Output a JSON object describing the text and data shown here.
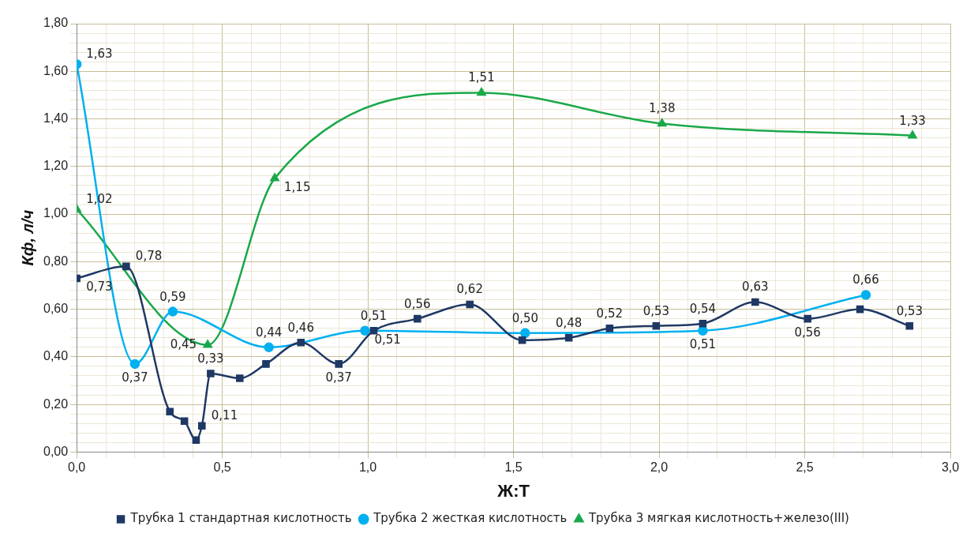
{
  "chart_data": {
    "type": "line",
    "xlabel": "Ж:Т",
    "ylabel": "Кф, л/ч",
    "xlim": [
      0,
      3
    ],
    "ylim": [
      0,
      1.8
    ],
    "xticks": [
      {
        "value": 0,
        "label": "0,0"
      },
      {
        "value": 0.1,
        "label": null
      },
      {
        "value": 0.2,
        "label": null
      },
      {
        "value": 0.3,
        "label": null
      },
      {
        "value": 0.4,
        "label": null
      },
      {
        "value": 0.5,
        "label": "0,5"
      },
      {
        "value": 0.6,
        "label": null
      },
      {
        "value": 0.7,
        "label": null
      },
      {
        "value": 0.8,
        "label": null
      },
      {
        "value": 0.9,
        "label": null
      },
      {
        "value": 1,
        "label": "1,0"
      },
      {
        "value": 1.1,
        "label": null
      },
      {
        "value": 1.2,
        "label": null
      },
      {
        "value": 1.3,
        "label": null
      },
      {
        "value": 1.4,
        "label": null
      },
      {
        "value": 1.5,
        "label": "1,5"
      },
      {
        "value": 1.6,
        "label": null
      },
      {
        "value": 1.7,
        "label": null
      },
      {
        "value": 1.8,
        "label": null
      },
      {
        "value": 1.9,
        "label": null
      },
      {
        "value": 2,
        "label": "2,0"
      },
      {
        "value": 2.1,
        "label": null
      },
      {
        "value": 2.2,
        "label": null
      },
      {
        "value": 2.3,
        "label": null
      },
      {
        "value": 2.4,
        "label": null
      },
      {
        "value": 2.5,
        "label": "2,5"
      },
      {
        "value": 2.6,
        "label": null
      },
      {
        "value": 2.7,
        "label": null
      },
      {
        "value": 2.8,
        "label": null
      },
      {
        "value": 2.9,
        "label": null
      },
      {
        "value": 3,
        "label": "3,0"
      }
    ],
    "yticks": [
      {
        "value": 0,
        "label": "0,00"
      },
      {
        "value": 0.04,
        "label": null
      },
      {
        "value": 0.08,
        "label": null
      },
      {
        "value": 0.12,
        "label": null
      },
      {
        "value": 0.16,
        "label": null
      },
      {
        "value": 0.2,
        "label": "0,20"
      },
      {
        "value": 0.24,
        "label": null
      },
      {
        "value": 0.28,
        "label": null
      },
      {
        "value": 0.32,
        "label": null
      },
      {
        "value": 0.36,
        "label": null
      },
      {
        "value": 0.4,
        "label": "0,40"
      },
      {
        "value": 0.44,
        "label": null
      },
      {
        "value": 0.48,
        "label": null
      },
      {
        "value": 0.52,
        "label": null
      },
      {
        "value": 0.56,
        "label": null
      },
      {
        "value": 0.6,
        "label": "0,60"
      },
      {
        "value": 0.64,
        "label": null
      },
      {
        "value": 0.68,
        "label": null
      },
      {
        "value": 0.72,
        "label": null
      },
      {
        "value": 0.76,
        "label": null
      },
      {
        "value": 0.8,
        "label": "0,80"
      },
      {
        "value": 0.84,
        "label": null
      },
      {
        "value": 0.88,
        "label": null
      },
      {
        "value": 0.92,
        "label": null
      },
      {
        "value": 0.96,
        "label": null
      },
      {
        "value": 1,
        "label": "1,00"
      },
      {
        "value": 1.04,
        "label": null
      },
      {
        "value": 1.08,
        "label": null
      },
      {
        "value": 1.12,
        "label": null
      },
      {
        "value": 1.16,
        "label": null
      },
      {
        "value": 1.2,
        "label": "1,20"
      },
      {
        "value": 1.24,
        "label": null
      },
      {
        "value": 1.28,
        "label": null
      },
      {
        "value": 1.32,
        "label": null
      },
      {
        "value": 1.36,
        "label": null
      },
      {
        "value": 1.4,
        "label": "1,40"
      },
      {
        "value": 1.44,
        "label": null
      },
      {
        "value": 1.48,
        "label": null
      },
      {
        "value": 1.52,
        "label": null
      },
      {
        "value": 1.56,
        "label": null
      },
      {
        "value": 1.6,
        "label": "1,60"
      },
      {
        "value": 1.64,
        "label": null
      },
      {
        "value": 1.68,
        "label": null
      },
      {
        "value": 1.72,
        "label": null
      },
      {
        "value": 1.76,
        "label": null
      },
      {
        "value": 1.8,
        "label": "1,80"
      }
    ],
    "grid": true,
    "legend": "bottom",
    "series": [
      {
        "name": "Трубка 1 стандартная кислотность",
        "color": "#1f3864",
        "marker": "square",
        "x": [
          0,
          0.17,
          0.32,
          0.37,
          0.41,
          0.43,
          0.46,
          0.56,
          0.65,
          0.77,
          0.9,
          1.02,
          1.17,
          1.35,
          1.53,
          1.69,
          1.83,
          1.99,
          2.15,
          2.33,
          2.51,
          2.69,
          2.86
        ],
        "values": [
          0.73,
          0.78,
          0.17,
          0.13,
          0.05,
          0.11,
          0.33,
          0.31,
          0.37,
          0.46,
          0.37,
          0.51,
          0.56,
          0.62,
          0.47,
          0.48,
          0.52,
          0.53,
          0.54,
          0.63,
          0.56,
          0.6,
          0.53
        ],
        "value_labels": [
          "0,73",
          "0,78",
          null,
          null,
          null,
          "0,11",
          "0,33",
          null,
          null,
          "0,46",
          "0,37",
          "0,51",
          "0,56",
          "0,62",
          null,
          "0,48",
          "0,52",
          "0,53",
          "0,54",
          "0,63",
          "0,56",
          null,
          "0,53"
        ]
      },
      {
        "name": "Трубка 2 жесткая кислотность",
        "color": "#00b0f0",
        "marker": "circle",
        "x": [
          0,
          0.2,
          0.33,
          0.66,
          0.99,
          1.54,
          2.15,
          2.71
        ],
        "values": [
          1.63,
          0.37,
          0.59,
          0.44,
          0.51,
          0.5,
          0.51,
          0.66
        ],
        "value_labels": [
          "1,63",
          "0,37",
          "0,59",
          "0,44",
          "0,51",
          "0,50",
          "0,51",
          "0,66"
        ]
      },
      {
        "name": "Трубка 3 мягкая кислотность+железо(III)",
        "color": "#1aa84a",
        "marker": "triangle",
        "x": [
          0,
          0.45,
          0.68,
          1.39,
          2.01,
          2.87
        ],
        "values": [
          1.02,
          0.45,
          1.15,
          1.51,
          1.38,
          1.33
        ],
        "value_labels": [
          "1,02",
          "0,45",
          "1,15",
          "1,51",
          "1,38",
          "1,33"
        ]
      }
    ]
  }
}
